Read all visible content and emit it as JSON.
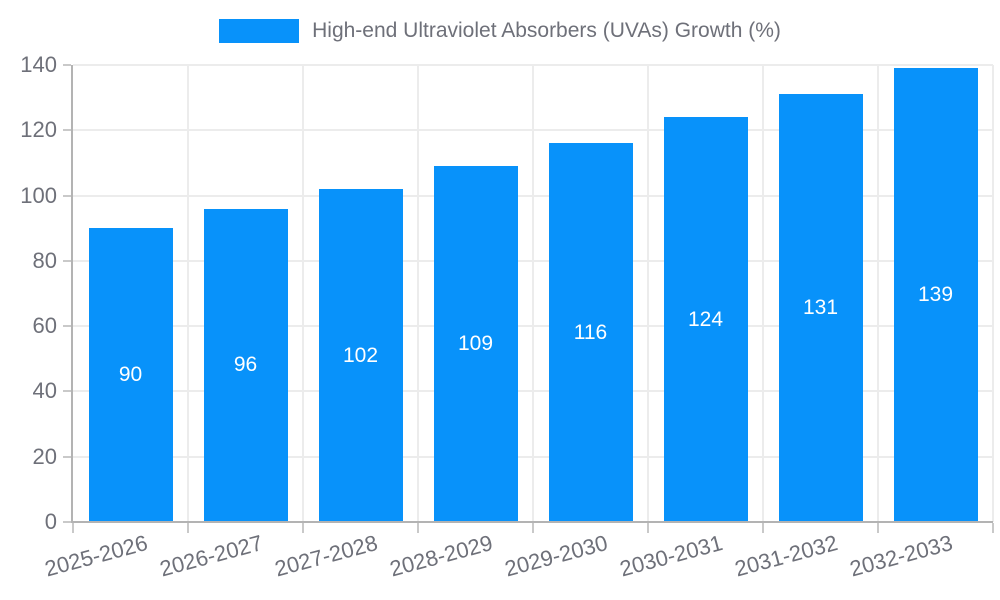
{
  "chart_data": {
    "type": "bar",
    "title": "High-end Ultraviolet Absorbers (UVAs) Growth (%)",
    "legend": {
      "label": "High-end Ultraviolet Absorbers (UVAs) Growth (%)",
      "position": "top-center"
    },
    "categories": [
      "2025-2026",
      "2026-2027",
      "2027-2028",
      "2028-2029",
      "2029-2030",
      "2030-2031",
      "2031-2032",
      "2032-2033"
    ],
    "series": [
      {
        "name": "High-end Ultraviolet Absorbers (UVAs) Growth (%)",
        "values": [
          90,
          96,
          102,
          109,
          116,
          124,
          131,
          139
        ]
      }
    ],
    "xlabel": "",
    "ylabel": "",
    "ylim": [
      0,
      140
    ],
    "y_ticks": [
      0,
      20,
      40,
      60,
      80,
      100,
      120,
      140
    ],
    "grid": true,
    "x_label_rotation_deg": -15,
    "bar_labels_visible": true,
    "colors": {
      "bar": "#0892fa",
      "bar_label": "#ffffff",
      "axis_line": "#b3b3b3",
      "tick": "#c9c9c9",
      "grid_line": "#ececec",
      "text": "#6e7079",
      "background": "#ffffff"
    }
  }
}
